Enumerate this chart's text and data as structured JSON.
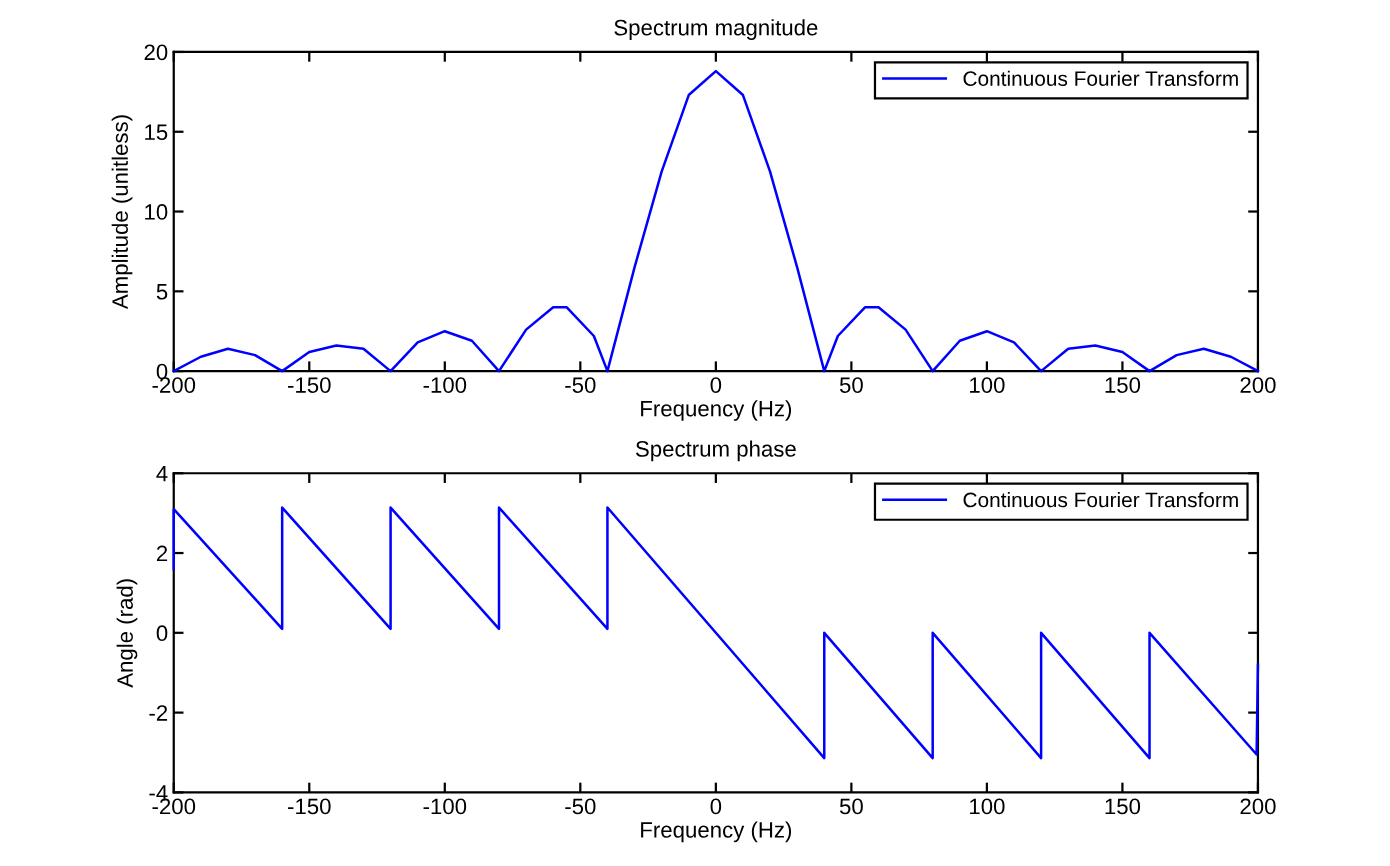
{
  "chart_data": [
    {
      "type": "line",
      "title": "Spectrum magnitude",
      "xlabel": "Frequency (Hz)",
      "ylabel": "Amplitude (unitless)",
      "xlim": [
        -200,
        200
      ],
      "xticks": [
        -200,
        -150,
        -100,
        -50,
        0,
        50,
        100,
        150,
        200
      ],
      "ylim": [
        0,
        20
      ],
      "yticks": [
        0,
        5,
        10,
        15,
        20
      ],
      "legend": "top right",
      "grid": false,
      "series": [
        {
          "name": "Continuous Fourier Transform",
          "color": "#0000ff",
          "x": [
            -200,
            -190,
            -180,
            -170,
            -160,
            -150,
            -140,
            -130,
            -120,
            -110,
            -100,
            -90,
            -80,
            -70,
            -60,
            -55,
            -45,
            -40,
            -30,
            -20,
            -10,
            0,
            10,
            20,
            30,
            40,
            45,
            55,
            60,
            70,
            80,
            90,
            100,
            110,
            120,
            130,
            140,
            150,
            160,
            170,
            180,
            190,
            200
          ],
          "values": [
            0,
            0.9,
            1.4,
            1.0,
            0,
            1.2,
            1.6,
            1.4,
            0,
            1.8,
            2.5,
            1.9,
            0,
            2.6,
            4.0,
            4.0,
            2.2,
            0,
            6.5,
            12.5,
            17.3,
            18.8,
            17.3,
            12.5,
            6.5,
            0,
            2.2,
            4.0,
            4.0,
            2.6,
            0,
            1.9,
            2.5,
            1.8,
            0,
            1.4,
            1.6,
            1.2,
            0,
            1.0,
            1.4,
            0.9,
            0
          ]
        }
      ]
    },
    {
      "type": "line",
      "title": "Spectrum phase",
      "xlabel": "Frequency (Hz)",
      "ylabel": "Angle (rad)",
      "xlim": [
        -200,
        200
      ],
      "xticks": [
        -200,
        -150,
        -100,
        -50,
        0,
        50,
        100,
        150,
        200
      ],
      "ylim": [
        -4,
        4
      ],
      "yticks": [
        -4,
        -2,
        0,
        2,
        4
      ],
      "legend": "top right",
      "grid": false,
      "series": [
        {
          "name": "Continuous Fourier Transform",
          "color": "#0000ff",
          "x": [
            -200,
            -200,
            -160,
            -160,
            -120,
            -120,
            -80,
            -80,
            -40,
            -40,
            40,
            40,
            80,
            80,
            120,
            120,
            160,
            160,
            199.5,
            200
          ],
          "values": [
            1.6,
            3.1,
            0.1,
            3.14,
            0.1,
            3.14,
            0.1,
            3.14,
            0.1,
            3.14,
            -3.14,
            0,
            -3.14,
            0,
            -3.14,
            0,
            -3.14,
            0,
            -3.05,
            -0.8
          ]
        }
      ]
    }
  ]
}
